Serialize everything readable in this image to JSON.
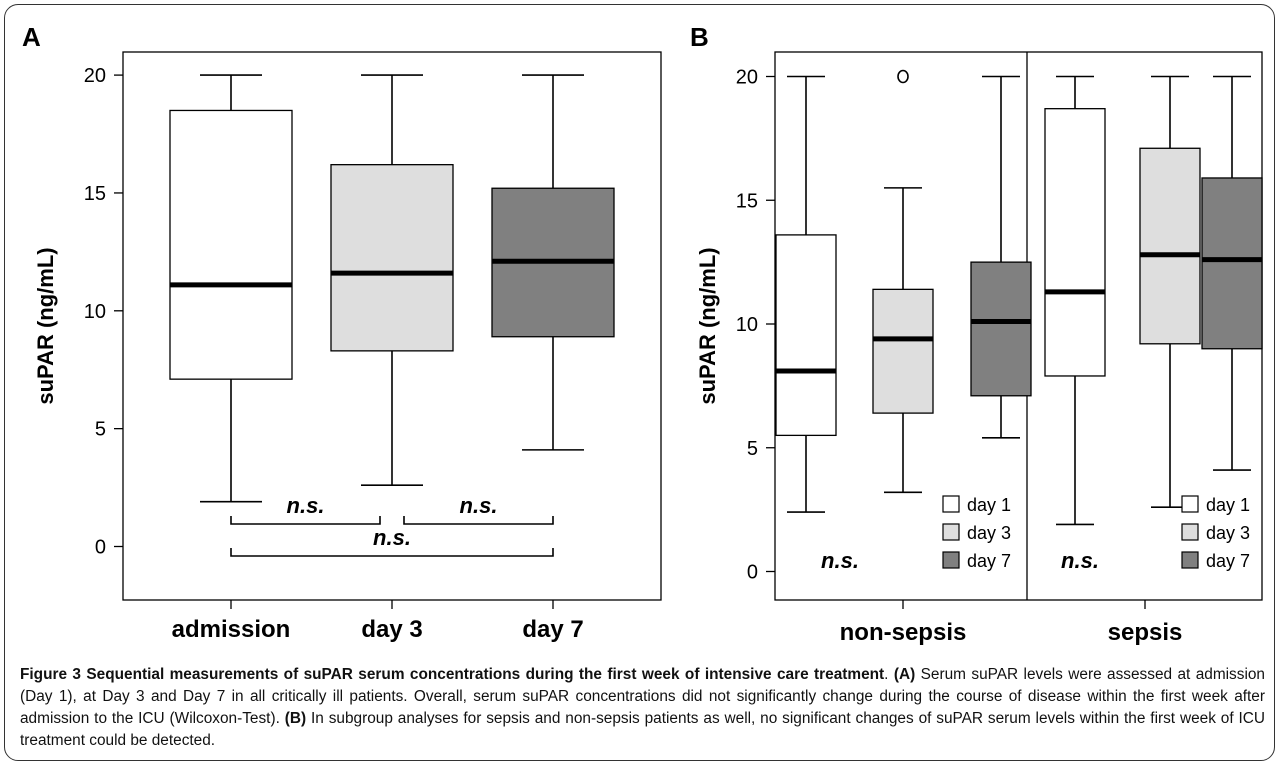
{
  "panel_a_label": "A",
  "panel_b_label": "B",
  "chart_data": [
    {
      "type": "boxplot",
      "panel": "A",
      "ylabel": "suPAR (ng/mL)",
      "ylim": [
        -2,
        21
      ],
      "yticks": [
        0,
        5,
        10,
        15,
        20
      ],
      "categories": [
        "admission",
        "day 3",
        "day 7"
      ],
      "colors": [
        "#ffffff",
        "#dedede",
        "#808080"
      ],
      "boxes": [
        {
          "whisker_low": 1.9,
          "q1": 7.1,
          "median": 11.1,
          "q3": 18.5,
          "whisker_high": 20
        },
        {
          "whisker_low": 2.6,
          "q1": 8.3,
          "median": 11.6,
          "q3": 16.2,
          "whisker_high": 20
        },
        {
          "whisker_low": 4.1,
          "q1": 8.9,
          "median": 12.1,
          "q3": 15.2,
          "whisker_high": 20
        }
      ],
      "annotations": [
        {
          "text": "n.s.",
          "from": 0,
          "to": 1,
          "level": 1
        },
        {
          "text": "n.s.",
          "from": 1,
          "to": 2,
          "level": 1
        },
        {
          "text": "n.s.",
          "from": 0,
          "to": 2,
          "level": 0
        }
      ]
    },
    {
      "type": "boxplot",
      "panel": "B",
      "ylabel": "suPAR (ng/mL)",
      "ylim": [
        -1,
        21
      ],
      "yticks": [
        0,
        5,
        10,
        15,
        20
      ],
      "groups": [
        "non-sepsis",
        "sepsis"
      ],
      "legend": [
        "day 1",
        "day 3",
        "day 7"
      ],
      "colors": [
        "#ffffff",
        "#dedede",
        "#808080"
      ],
      "group_annotation": "n.s.",
      "boxes": [
        [
          {
            "whisker_low": 2.4,
            "q1": 5.5,
            "median": 8.1,
            "q3": 13.6,
            "whisker_high": 20
          },
          {
            "whisker_low": 3.2,
            "q1": 6.4,
            "median": 9.4,
            "q3": 11.4,
            "whisker_high": 15.5,
            "outliers": [
              20
            ]
          },
          {
            "whisker_low": 5.4,
            "q1": 7.1,
            "median": 10.1,
            "q3": 12.5,
            "whisker_high": 20
          }
        ],
        [
          {
            "whisker_low": 1.9,
            "q1": 7.9,
            "median": 11.3,
            "q3": 18.7,
            "whisker_high": 20
          },
          {
            "whisker_low": 2.6,
            "q1": 9.2,
            "median": 12.8,
            "q3": 17.1,
            "whisker_high": 20
          },
          {
            "whisker_low": 4.1,
            "q1": 9.0,
            "median": 12.6,
            "q3": 15.9,
            "whisker_high": 20
          }
        ]
      ]
    }
  ],
  "caption": {
    "title": "Figure 3 Sequential measurements of suPAR serum concentrations during the first week of intensive care treatment",
    "a_tag": "(A)",
    "a_text": " Serum suPAR levels were assessed at admission (Day 1), at Day 3 and Day 7 in all critically ill patients. Overall, serum suPAR concentrations did not significantly change during the course of disease within the first week after admission to the ICU (Wilcoxon-Test). ",
    "b_tag": "(B)",
    "b_text": " In subgroup analyses for sepsis and non-sepsis patients as well, no significant changes of suPAR serum levels within the first week of ICU treatment could be detected."
  }
}
